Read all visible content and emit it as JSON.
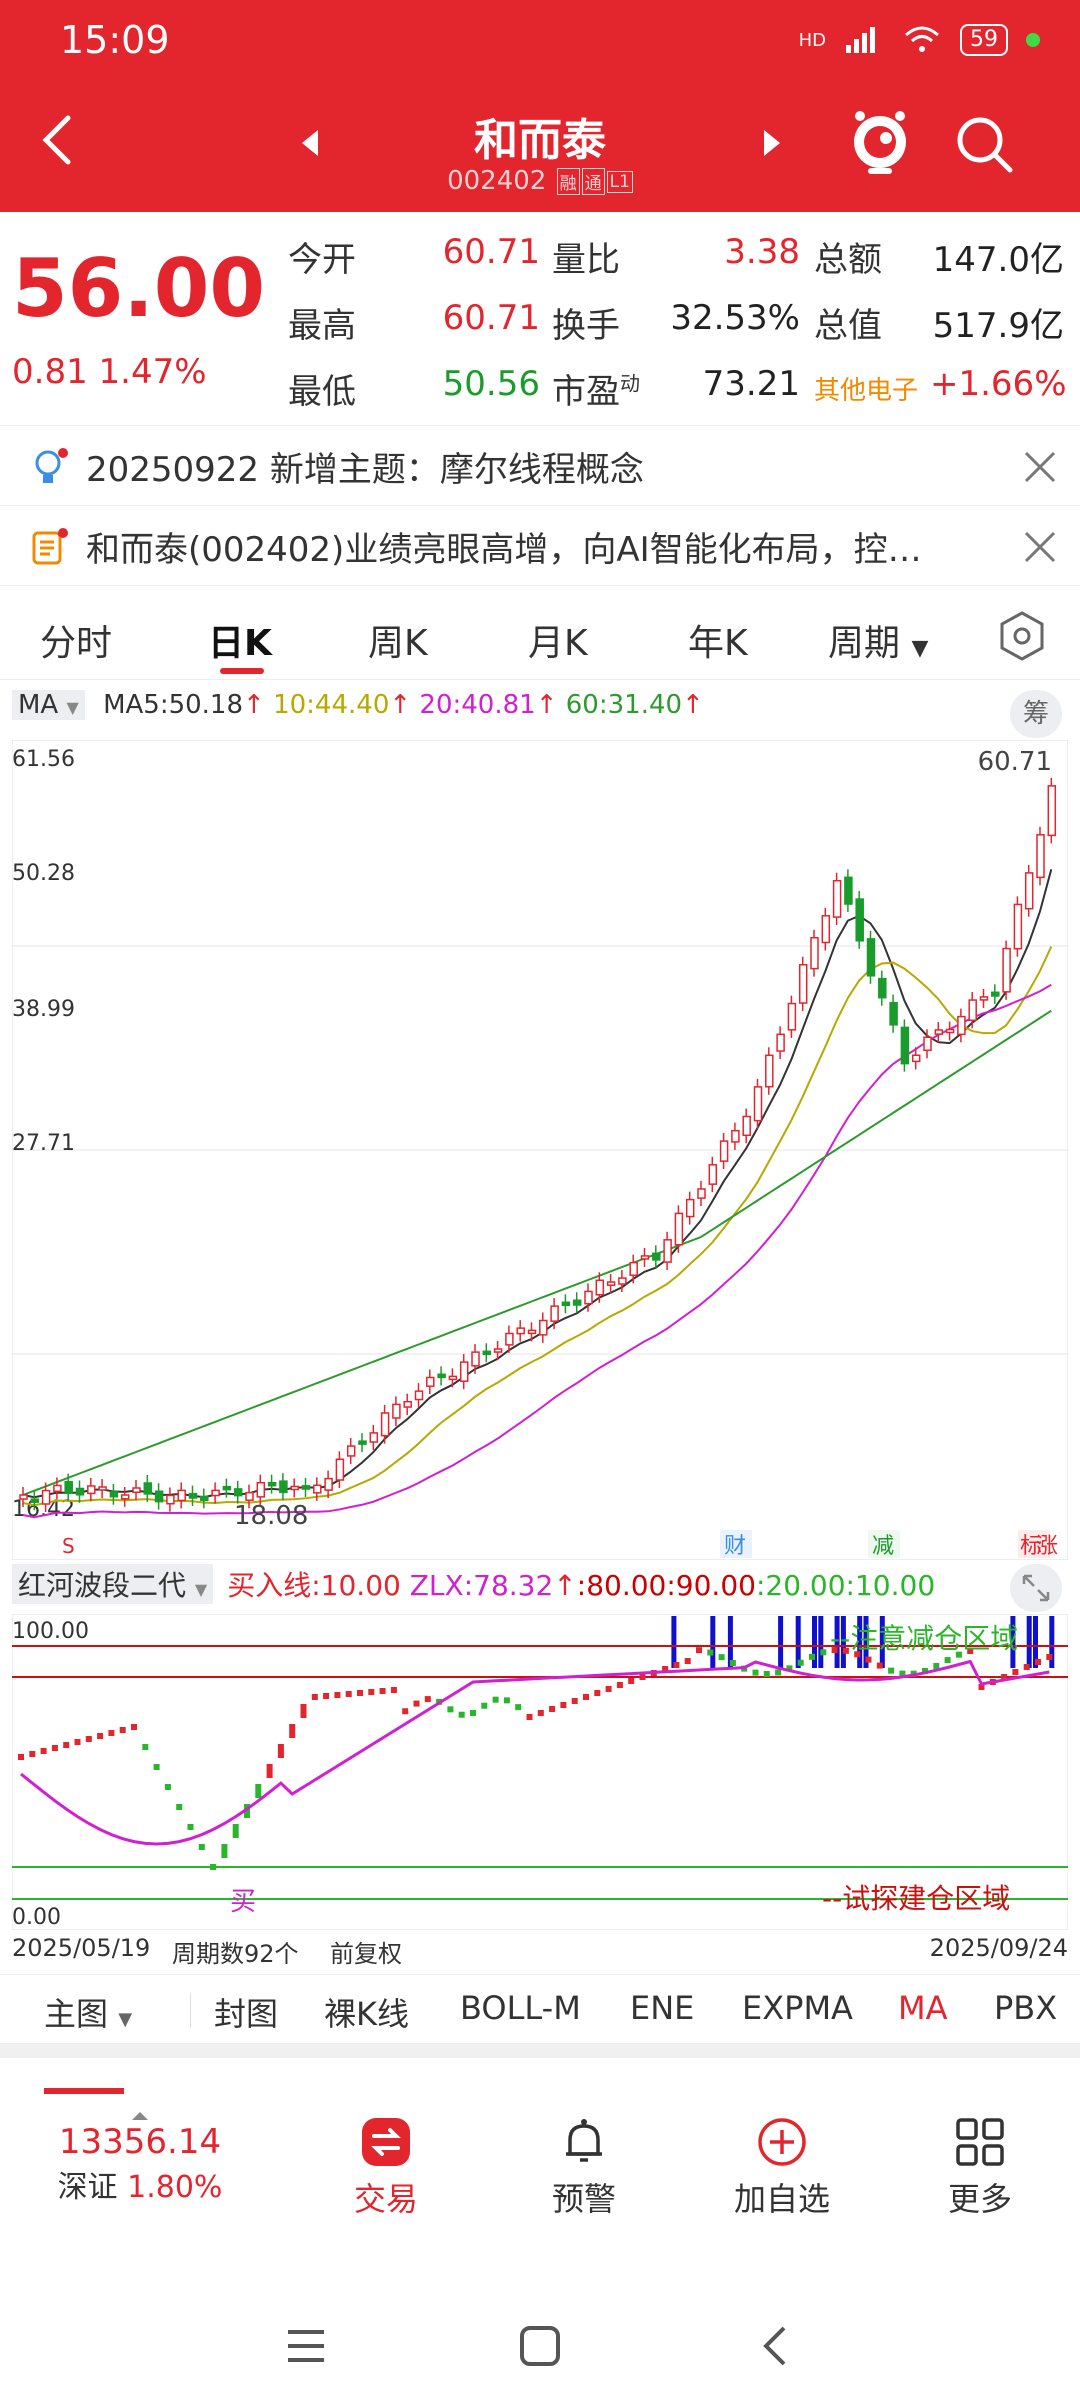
{
  "status_bar": {
    "time": "15:09",
    "signal": "HD",
    "battery": "59"
  },
  "header": {
    "name": "和而泰",
    "code": "002402",
    "tags": [
      "融",
      "通",
      "L1"
    ]
  },
  "quote": {
    "price": "56.00",
    "change": "0.81",
    "change_pct": "1.47%",
    "open_label": "今开",
    "open": "60.71",
    "high_label": "最高",
    "high": "60.71",
    "low_label": "最低",
    "low": "50.56",
    "vol_ratio_label": "量比",
    "vol_ratio": "3.38",
    "turnover_label": "换手",
    "turnover": "32.53%",
    "pe_label": "市盈",
    "pe_sup": "动",
    "pe": "73.21",
    "amount_label": "总额",
    "amount": "147.0亿",
    "mcap_label": "总值",
    "mcap": "517.9亿",
    "sector": "其他电子",
    "sector_change": "+1.66%"
  },
  "notices": [
    {
      "text": "20250922 新增主题：摩尔线程概念"
    },
    {
      "text": "和而泰(002402)业绩亮眼高增，向AI智能化布局，控…"
    }
  ],
  "period_tabs": [
    "分时",
    "日K",
    "周K",
    "月K",
    "年K",
    "周期"
  ],
  "period_active": "日K",
  "ma_legend": {
    "select": "MA",
    "ma5": "MA5:50.18",
    "ma10": "10:44.40",
    "ma20": "20:40.81",
    "ma60": "60:31.40",
    "chip": "筹"
  },
  "price_axis": [
    "61.56",
    "50.28",
    "38.99",
    "27.71",
    "16.42"
  ],
  "chart_marks": {
    "last_price": "60.71",
    "low_mark": "18.08",
    "s_label": "S",
    "events": [
      "财",
      "减",
      "标",
      "涨"
    ]
  },
  "indicator": {
    "name": "红河波段二代",
    "buy_line": "买入线:10.00",
    "zlx": "ZLX:78.32",
    "levels": [
      ":80.00",
      ":90.00",
      ":20.00",
      ":10.00"
    ],
    "axis_top": "100.00",
    "axis_bottom": "0.00",
    "reduce_zone": "--注意减仓区域",
    "build_zone": "--试探建仓区域",
    "buy_mark": "买"
  },
  "chart_footer": {
    "start_date": "2025/05/19",
    "period_count": "周期数92个",
    "adjust": "前复权",
    "end_date": "2025/09/24"
  },
  "indicator_tabs": [
    "主图",
    "封图",
    "裸K线",
    "BOLL-M",
    "ENE",
    "EXPMA",
    "MA",
    "PBX"
  ],
  "indicator_tab_active": "MA",
  "bottom_nav": {
    "index_value": "13356.14",
    "index_name": "深证",
    "index_change": "1.80%",
    "trade": "交易",
    "alert": "预警",
    "add_watch": "加自选",
    "more": "更多"
  },
  "colors": {
    "header_red": "#e3252e",
    "up_red": "#e3252e",
    "down_green": "#1a9c2c",
    "ma5": "#333333",
    "ma10": "#b8a800",
    "ma20": "#d020d0",
    "ma60": "#2e9a2e"
  }
}
